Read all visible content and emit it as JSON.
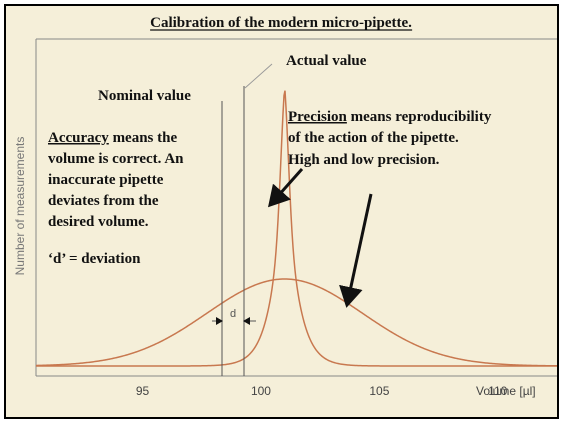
{
  "title": "Calibration of the modern micro-pipette.",
  "labels": {
    "actual_value": "Actual value",
    "nominal_value": "Nominal value",
    "d_marker": "d",
    "accuracy_word": "Accuracy",
    "accuracy_rest": " means the",
    "accuracy_line2": "volume is correct. An",
    "accuracy_line3": "inaccurate pipette",
    "accuracy_line4": "deviates from the",
    "accuracy_line5": "desired volume.",
    "deviation_note": "‘d’ = deviation",
    "precision_word": "Precision",
    "precision_rest": " means reproducibility",
    "precision_line2": "of the action of the pipette.",
    "precision_line3": "High and low precision."
  },
  "colors": {
    "background": "#f5efd9",
    "curve": "#c8784f",
    "axis": "#888888",
    "text": "#111111"
  },
  "chart_data": {
    "type": "line",
    "xlabel": "Volume [µl]",
    "ylabel": "Number of measurements",
    "xlim": [
      90.5,
      112.5
    ],
    "x_ticks": [
      95,
      100,
      105,
      110
    ],
    "nominal_value": 100,
    "actual_value": 101,
    "series": [
      {
        "peak_x": 101,
        "spread": "narrow"
      },
      {
        "peak_x": 101,
        "spread": "wide"
      }
    ]
  }
}
